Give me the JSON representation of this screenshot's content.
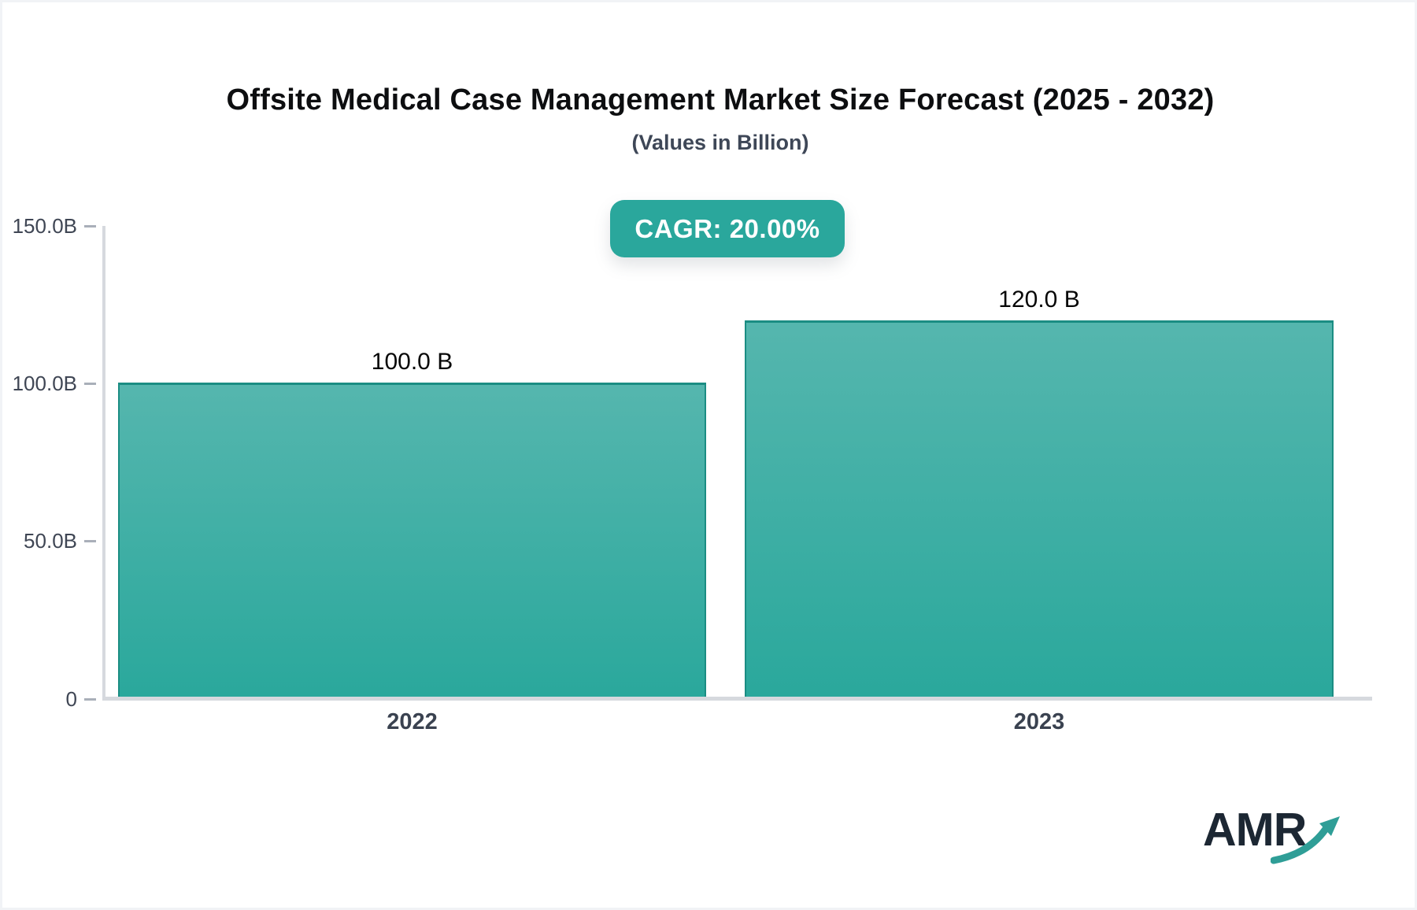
{
  "header": {
    "title": "Offsite Medical Case Management Market Size Forecast (2025 - 2032)",
    "subtitle": "(Values in Billion)"
  },
  "badge": {
    "label": "CAGR: 20.00%"
  },
  "chart_data": {
    "type": "bar",
    "title": "Offsite Medical Case Management Market Size Forecast (2025 - 2032)",
    "subtitle": "(Values in Billion)",
    "unit": "Billion",
    "categories": [
      "2022",
      "2023"
    ],
    "values": [
      100.0,
      120.0
    ],
    "value_labels": [
      "100.0 B",
      "120.0 B"
    ],
    "cagr": "20.00%",
    "ylim": [
      0,
      150
    ],
    "yticks": [
      {
        "label": "150.0B",
        "value": 150
      },
      {
        "label": "100.0B",
        "value": 100
      },
      {
        "label": "50.0B",
        "value": 50
      },
      {
        "label": "0",
        "value": 0
      }
    ],
    "grid": false,
    "legend_position": "none"
  },
  "colors": {
    "accent": "#2aa79c",
    "bar_gradient_top": "#55b6ae",
    "bar_gradient_bottom": "#2aa89c",
    "bar_border": "#1b8d83",
    "axis": "#d6d9de",
    "tick_text": "#3f4654",
    "category_text": "#3a4250",
    "title_text": "#0d0e10",
    "subtitle_text": "#3e4757",
    "logo_text": "#1c2733",
    "logo_arrow": "#2f9e97"
  },
  "logo": {
    "text": "AMR",
    "arrow_icon": "growth-arrow"
  }
}
